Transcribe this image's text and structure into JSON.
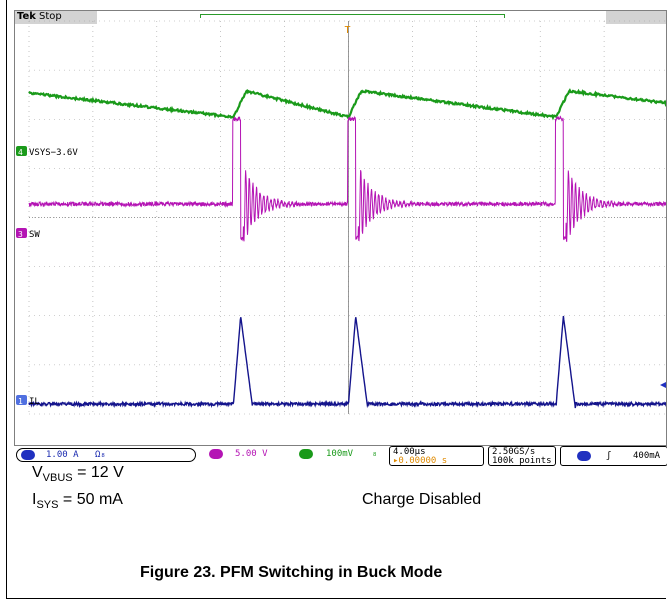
{
  "scope": {
    "brand": "Tek",
    "run_state": "Stop",
    "channel_labels": {
      "ch4": "VSYS−3.6V",
      "ch3": "SW",
      "ch1": "IL"
    },
    "channel_numbers": {
      "ch4": "4",
      "ch3": "3",
      "ch1": "1"
    },
    "trigger_marker": "T"
  },
  "status": {
    "ch1_scale": "1.00 A",
    "ch1_suffix": "Ω₈",
    "ch3_scale": "5.00 V",
    "ch4_scale": "100mV",
    "ch4_suffix": "₈",
    "timebase": "4.00µs",
    "trig_pos": "▸0.00000 s",
    "sample_rate": "2.50GS/s",
    "record_length": "100k points",
    "trigger_ch": "1",
    "trigger_level": "400mA"
  },
  "caption": {
    "vbus_prefix": "V",
    "vbus_sub": "VBUS",
    "vbus_value": " = 12 V",
    "isys_prefix": "I",
    "isys_sub": "SYS",
    "isys_value": " = 50 mA",
    "charge_state": "Charge Disabled",
    "figure_title": "Figure 23. PFM Switching in Buck Mode"
  },
  "colors": {
    "vsys": "#1a9a1a",
    "sw": "#b414b4",
    "il": "#14148c",
    "grid": "#a0a0a0"
  },
  "chart_data": {
    "type": "line",
    "x_unit": "µs",
    "xlim": [
      -20,
      20
    ],
    "divisions": {
      "x": 10,
      "y": 8
    },
    "timebase_per_div": "4.00µs",
    "series": [
      {
        "name": "VSYS−3.6V",
        "channel": 4,
        "scale_per_div": "100mV",
        "points_time_us": [
          -20,
          -9.0,
          -7.5,
          -6.6,
          0,
          11.6,
          13.1,
          14.1,
          20
        ],
        "description_levels_div": [
          0.0,
          -0.35,
          -0.45,
          -0.05,
          -0.35,
          -0.45,
          -0.05,
          -0.1,
          -0.15
        ]
      },
      {
        "name": "SW",
        "channel": 3,
        "scale_per_div": "5.00 V",
        "switching_times_us": [
          -7.2,
          0.0,
          13.0
        ],
        "idle_level_div": 0.0,
        "peak_level_div": 1.7,
        "dip_level_div": -0.6
      },
      {
        "name": "IL",
        "channel": 1,
        "scale_per_div": "1.00 A",
        "pulse_times_us": [
          -7.2,
          0.0,
          13.0
        ],
        "peak_a": 1.6,
        "baseline_a": 0.0
      }
    ]
  }
}
